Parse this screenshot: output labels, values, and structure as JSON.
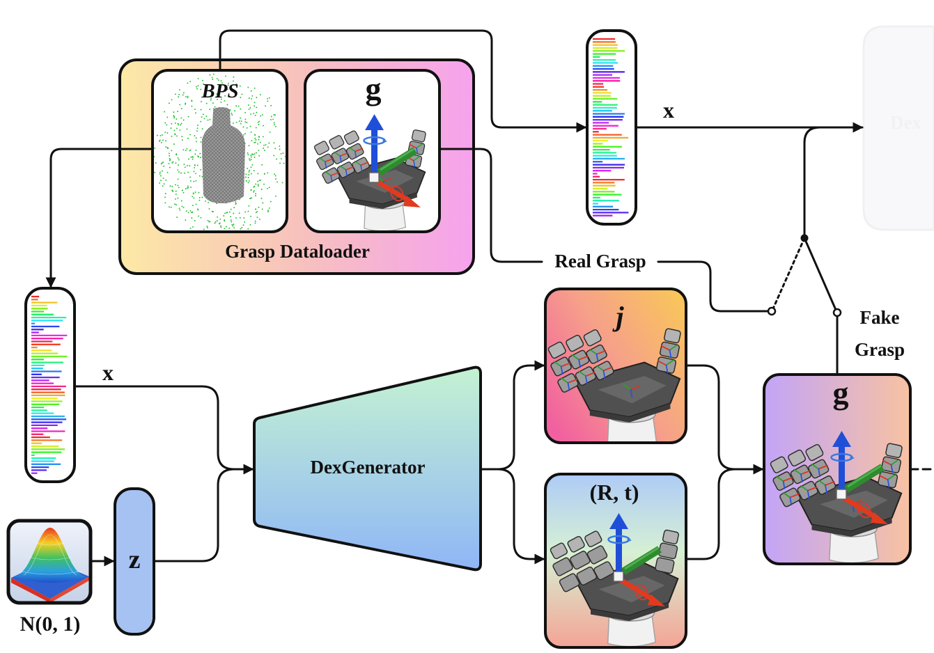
{
  "loader": {
    "title": "Grasp Dataloader",
    "bps_label": "BPS",
    "grasp_label": "g"
  },
  "features": {
    "top_label": "x",
    "left_label": "x"
  },
  "latent": {
    "label": "z",
    "prior_label": "N(0, 1)"
  },
  "generator": {
    "label": "DexGenerator"
  },
  "outputs": {
    "joints_label": "j",
    "pose_label": "(R, t)",
    "grasp_label": "g"
  },
  "switch": {
    "real_label": "Real Grasp",
    "fake_label_line1": "Fake",
    "fake_label_line2": "Grasp"
  },
  "discriminator": {
    "partial_label": "Dex"
  },
  "colors": {
    "stroke": "#111111",
    "point_cloud": "#1fbf2a",
    "axis_z": "#1f4fd8",
    "axis_x": "#e23a1e",
    "axis_y": "#2e8b2e",
    "latent_fill": "#a6c2f2"
  }
}
